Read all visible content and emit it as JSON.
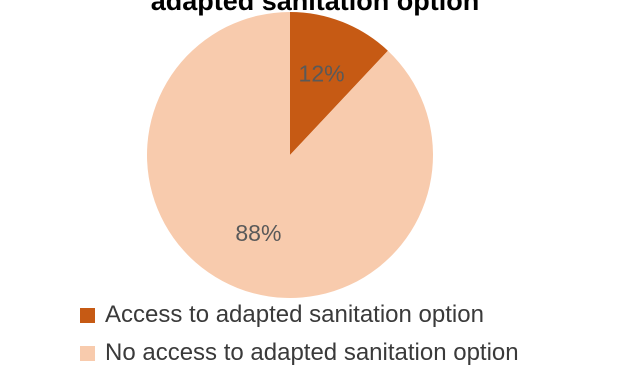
{
  "chart_data": {
    "type": "pie",
    "title": "adapted sanitation option",
    "start_angle_deg": 0,
    "direction": "clockwise",
    "slices": [
      {
        "name": "Access to adapted sanitation option",
        "value": 12,
        "label": "12%",
        "color": "#c65a14"
      },
      {
        "name": "No access to adapted sanitation option",
        "value": 88,
        "label": "88%",
        "color": "#f8cbad"
      }
    ],
    "legend_position": "bottom"
  }
}
